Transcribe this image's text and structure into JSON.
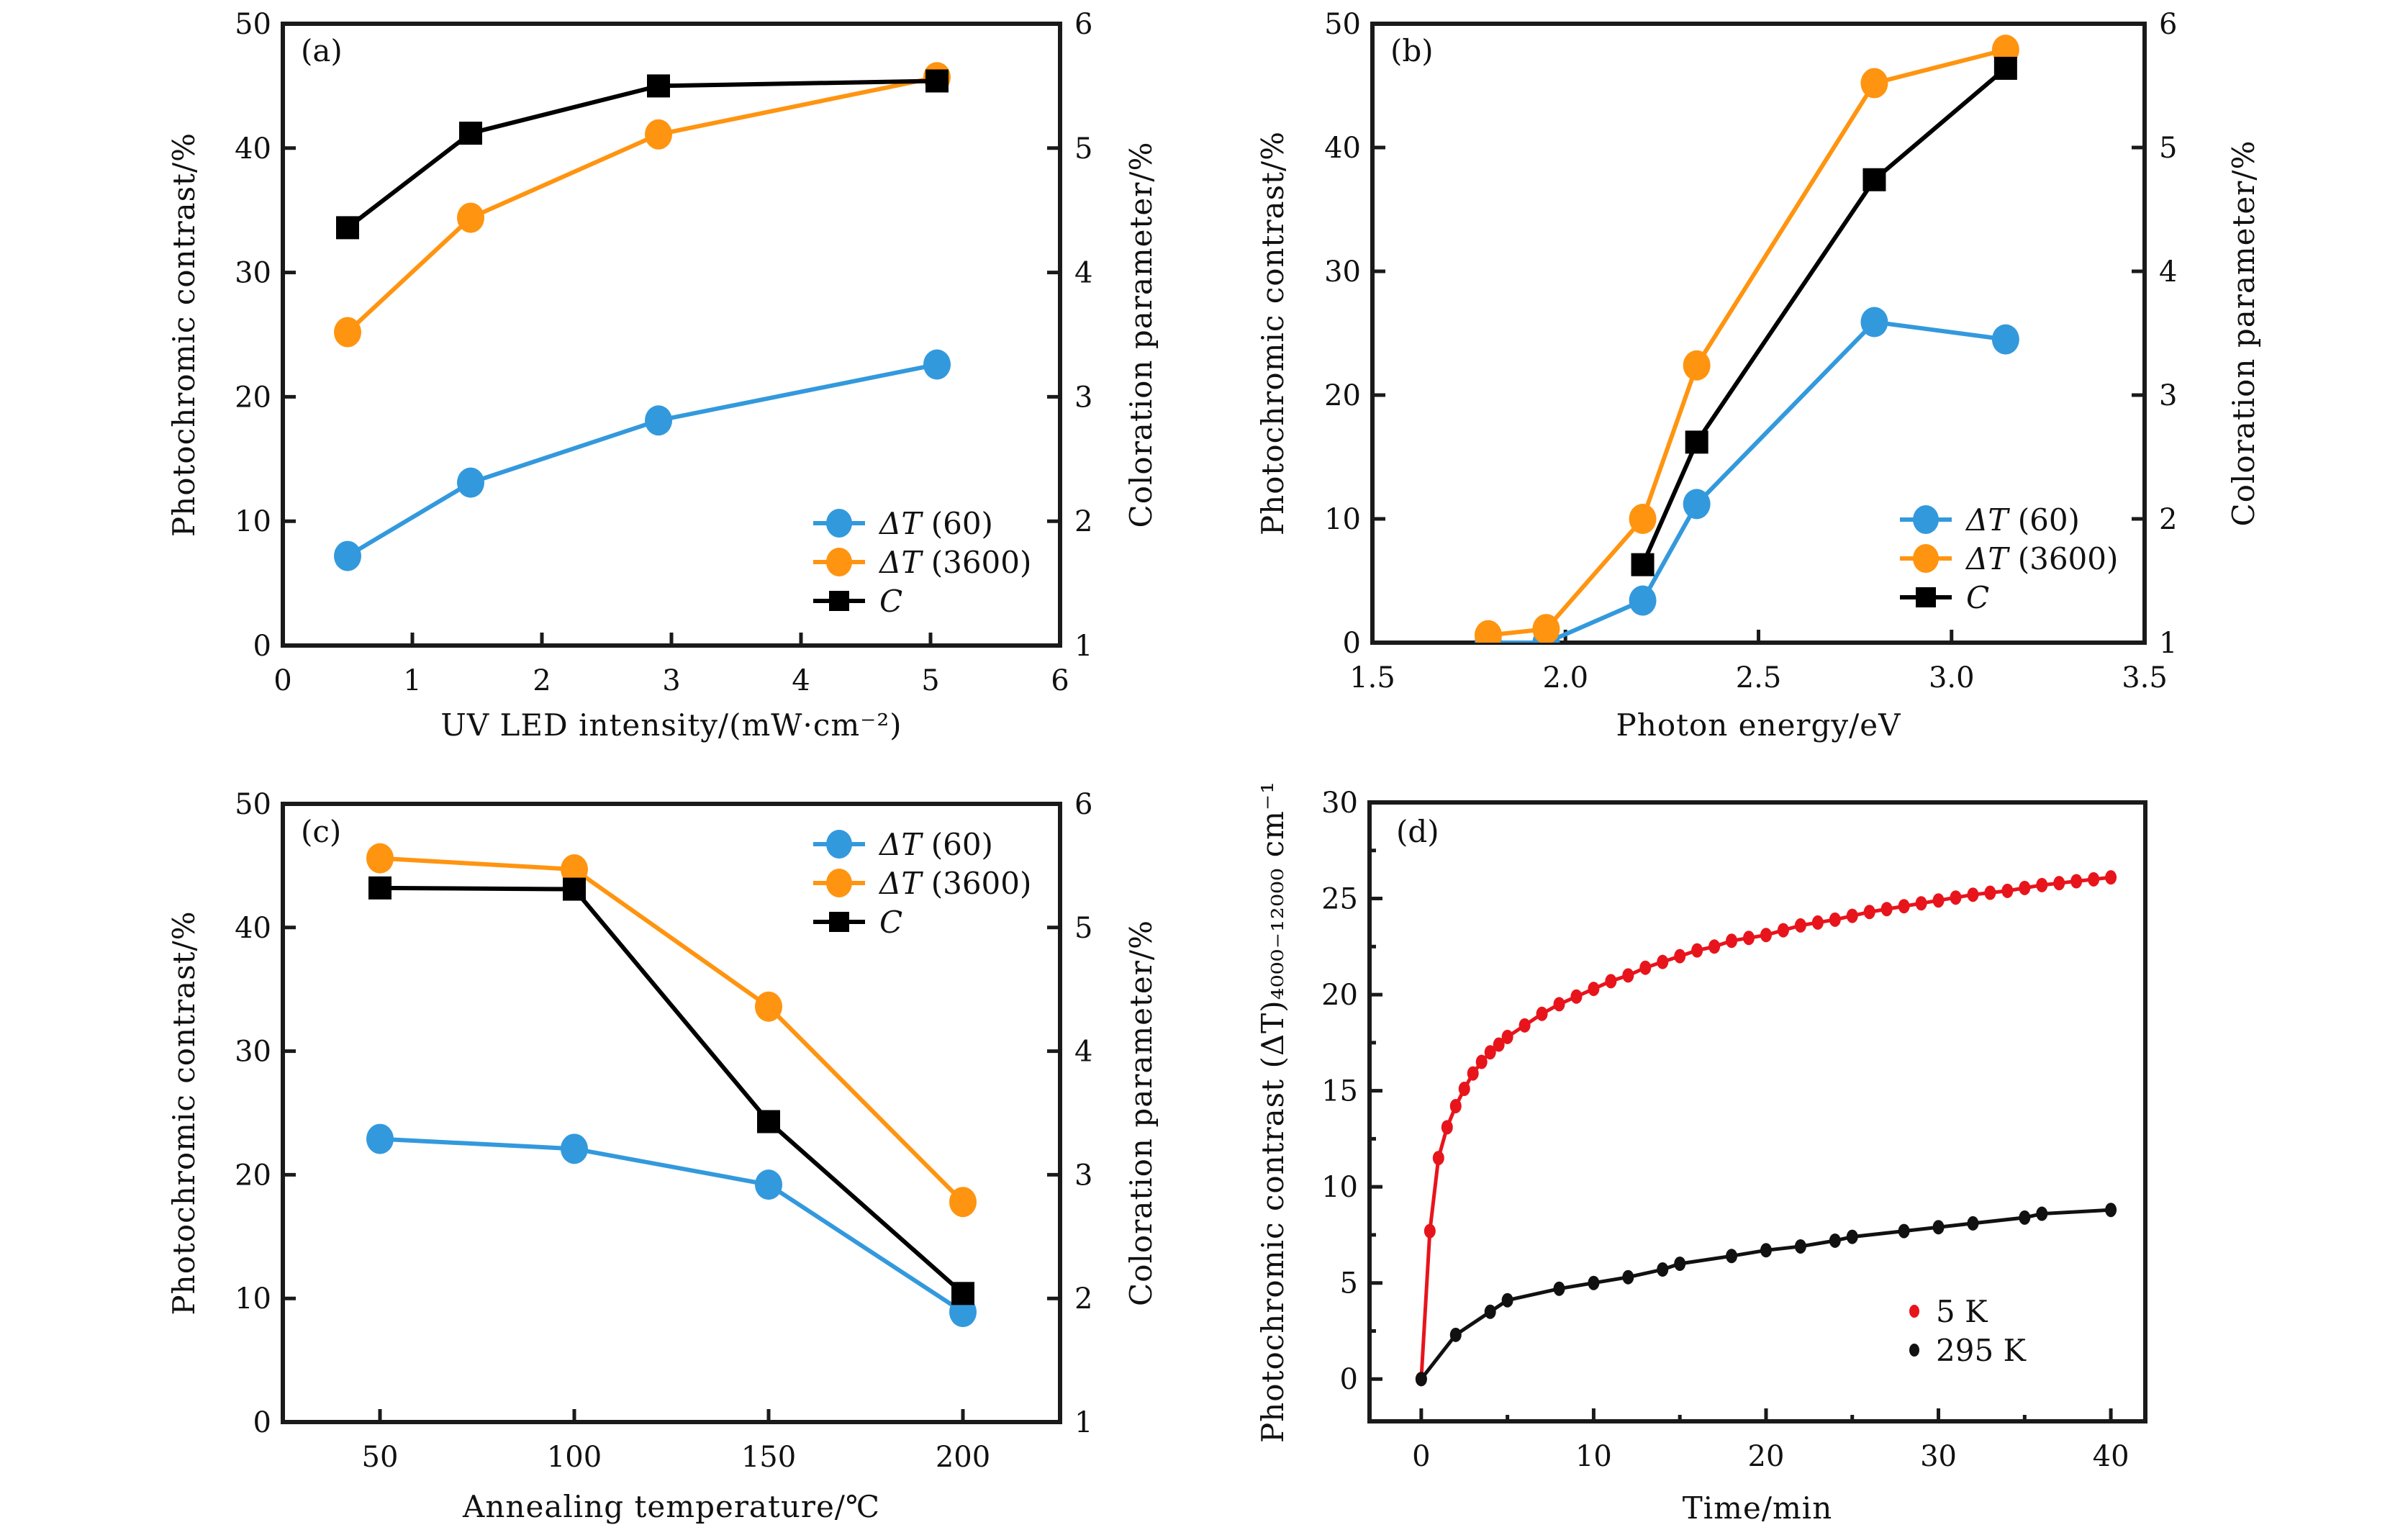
{
  "chart_data": [
    {
      "panel": "a",
      "type": "line",
      "panel_label": "(a)",
      "xlabel": "UV LED intensity/(mW·cm⁻²)",
      "ylabel": "Photochromic contrast/%",
      "ylabel_right": "Coloration parameter/%",
      "xlim": [
        0,
        6
      ],
      "ylim": [
        0,
        50
      ],
      "ylim_right": [
        1,
        6
      ],
      "xticks": [
        "0",
        "1",
        "2",
        "3",
        "4",
        "5",
        "6"
      ],
      "xtick_values": [
        0,
        1,
        2,
        3,
        4,
        5,
        6
      ],
      "yticks": [
        "0",
        "10",
        "20",
        "30",
        "40",
        "50"
      ],
      "ytick_values": [
        0,
        10,
        20,
        30,
        40,
        50
      ],
      "yticks_right": [
        "1",
        "2",
        "3",
        "4",
        "5",
        "6"
      ],
      "ytick_right_values": [
        1,
        2,
        3,
        4,
        5,
        6
      ],
      "legend_position": "bottom-right",
      "grid": false,
      "series": [
        {
          "name": "ΔT (60)",
          "name_symbol": "ΔT",
          "name_arg": " (60)",
          "marker": "circle",
          "color": "#3399dd",
          "axis": "left",
          "x": [
            0.5,
            1.45,
            2.9,
            5.05
          ],
          "y": [
            7.2,
            13.1,
            18.1,
            22.6
          ]
        },
        {
          "name": "ΔT (3600)",
          "name_symbol": "ΔT",
          "name_arg": " (3600)",
          "marker": "circle",
          "color": "#ff9410",
          "axis": "left",
          "x": [
            0.5,
            1.45,
            2.9,
            5.05
          ],
          "y": [
            25.2,
            34.4,
            41.1,
            45.7
          ]
        },
        {
          "name": "C",
          "name_symbol": "C",
          "name_arg": "",
          "marker": "square",
          "color": "#000000",
          "axis": "right",
          "x": [
            0.5,
            1.45,
            2.9,
            5.05
          ],
          "y": [
            4.36,
            5.12,
            5.5,
            5.54
          ]
        }
      ]
    },
    {
      "panel": "b",
      "type": "line",
      "panel_label": "(b)",
      "xlabel": "Photon energy/eV",
      "ylabel": "Photochromic contrast/%",
      "ylabel_right": "Coloration parameter/%",
      "xlim": [
        1.5,
        3.5
      ],
      "ylim": [
        0,
        50
      ],
      "ylim_right": [
        1,
        6
      ],
      "xticks": [
        "1.5",
        "2.0",
        "2.5",
        "3.0",
        "3.5"
      ],
      "xtick_values": [
        1.5,
        2.0,
        2.5,
        3.0,
        3.5
      ],
      "yticks": [
        "0",
        "10",
        "20",
        "30",
        "40",
        "50"
      ],
      "ytick_values": [
        0,
        10,
        20,
        30,
        40,
        50
      ],
      "yticks_right": [
        "1",
        "2",
        "3",
        "4",
        "5",
        "6"
      ],
      "ytick_right_values": [
        1,
        2,
        3,
        4,
        5,
        6
      ],
      "legend_position": "bottom-right",
      "grid": false,
      "series": [
        {
          "name": "ΔT (60)",
          "name_symbol": "ΔT",
          "name_arg": " (60)",
          "marker": "circle",
          "color": "#3399dd",
          "axis": "left",
          "x": [
            1.8,
            1.95,
            2.2,
            2.34,
            2.8,
            3.14
          ],
          "y": [
            0.0,
            0.0,
            3.4,
            11.2,
            25.9,
            24.5
          ]
        },
        {
          "name": "ΔT (3600)",
          "name_symbol": "ΔT",
          "name_arg": " (3600)",
          "marker": "circle",
          "color": "#ff9410",
          "axis": "left",
          "x": [
            1.8,
            1.95,
            2.2,
            2.34,
            2.8,
            3.14
          ],
          "y": [
            0.6,
            1.1,
            10.0,
            22.4,
            45.2,
            47.9
          ]
        },
        {
          "name": "C",
          "name_symbol": "C",
          "name_arg": "",
          "marker": "square",
          "color": "#000000",
          "axis": "right",
          "x": [
            2.2,
            2.34,
            2.8,
            3.14
          ],
          "y": [
            1.63,
            2.62,
            4.74,
            5.64
          ]
        }
      ]
    },
    {
      "panel": "c",
      "type": "line",
      "panel_label": "(c)",
      "xlabel": "Annealing temperature/℃",
      "ylabel": "Photochromic contrast/%",
      "ylabel_right": "Coloration parameter/%",
      "xlim": [
        25,
        225
      ],
      "ylim": [
        0,
        50
      ],
      "ylim_right": [
        1,
        6
      ],
      "xticks": [
        "50",
        "100",
        "150",
        "200"
      ],
      "xtick_values": [
        50,
        100,
        150,
        200
      ],
      "yticks": [
        "0",
        "10",
        "20",
        "30",
        "40",
        "50"
      ],
      "ytick_values": [
        0,
        10,
        20,
        30,
        40,
        50
      ],
      "yticks_right": [
        "1",
        "2",
        "3",
        "4",
        "5",
        "6"
      ],
      "ytick_right_values": [
        1,
        2,
        3,
        4,
        5,
        6
      ],
      "legend_position": "top-right",
      "grid": false,
      "series": [
        {
          "name": "ΔT (60)",
          "name_symbol": "ΔT",
          "name_arg": " (60)",
          "marker": "circle",
          "color": "#3399dd",
          "axis": "left",
          "x": [
            50,
            100,
            150,
            200
          ],
          "y": [
            22.9,
            22.1,
            19.2,
            8.9
          ]
        },
        {
          "name": "ΔT (3600)",
          "name_symbol": "ΔT",
          "name_arg": " (3600)",
          "marker": "circle",
          "color": "#ff9410",
          "axis": "left",
          "x": [
            50,
            100,
            150,
            200
          ],
          "y": [
            45.6,
            44.7,
            33.6,
            17.8
          ]
        },
        {
          "name": "C",
          "name_symbol": "C",
          "name_arg": "",
          "marker": "square",
          "color": "#000000",
          "axis": "right",
          "x": [
            50,
            100,
            150,
            200
          ],
          "y": [
            5.32,
            5.31,
            3.43,
            2.04
          ]
        }
      ]
    },
    {
      "panel": "d",
      "type": "scatter",
      "panel_label": "(d)",
      "xlabel": "Time/min",
      "ylabel": "Photochromic contrast (ΔT)₄₀₀₀₋₁₂₀₀₀ cm⁻¹",
      "xlim": [
        -3,
        42
      ],
      "ylim": [
        -2.2,
        30
      ],
      "xticks": [
        "0",
        "10",
        "20",
        "30",
        "40"
      ],
      "xtick_values": [
        0,
        10,
        20,
        30,
        40
      ],
      "xminor_values": [
        5,
        15,
        25,
        35
      ],
      "yticks": [
        "0",
        "5",
        "10",
        "15",
        "20",
        "25",
        "30"
      ],
      "ytick_values": [
        0,
        5,
        10,
        15,
        20,
        25,
        30
      ],
      "legend_position": "bottom-right",
      "grid": false,
      "series": [
        {
          "name": "5 K",
          "marker": "dot",
          "color": "#e8141c",
          "fit_line": true,
          "x": [
            0,
            0.5,
            1,
            1.5,
            2,
            2.5,
            3,
            3.5,
            4,
            4.5,
            5,
            6,
            7,
            8,
            9,
            10,
            11,
            12,
            13,
            14,
            15,
            16,
            17,
            18,
            19,
            20,
            21,
            22,
            23,
            24,
            25,
            26,
            27,
            28,
            29,
            30,
            31,
            32,
            33,
            34,
            35,
            36,
            37,
            38,
            39,
            40
          ],
          "y": [
            0,
            7.7,
            11.5,
            13.1,
            14.2,
            15.1,
            15.9,
            16.5,
            17.0,
            17.4,
            17.8,
            18.4,
            19.0,
            19.5,
            19.9,
            20.3,
            20.7,
            21.0,
            21.4,
            21.7,
            22.0,
            22.3,
            22.5,
            22.8,
            22.95,
            23.1,
            23.35,
            23.6,
            23.75,
            23.9,
            24.1,
            24.3,
            24.45,
            24.6,
            24.75,
            24.9,
            25.05,
            25.2,
            25.3,
            25.4,
            25.55,
            25.7,
            25.8,
            25.9,
            26.0,
            26.1
          ]
        },
        {
          "name": "295 K",
          "marker": "dot",
          "color": "#111111",
          "fit_line": true,
          "x": [
            0,
            2,
            4,
            5,
            8,
            10,
            12,
            14,
            15,
            18,
            20,
            22,
            24,
            25,
            28,
            30,
            32,
            35,
            36,
            40
          ],
          "y": [
            0,
            2.3,
            3.5,
            4.1,
            4.7,
            5.0,
            5.3,
            5.7,
            6.0,
            6.4,
            6.7,
            6.9,
            7.2,
            7.4,
            7.7,
            7.9,
            8.1,
            8.4,
            8.6,
            8.8
          ]
        }
      ]
    }
  ]
}
